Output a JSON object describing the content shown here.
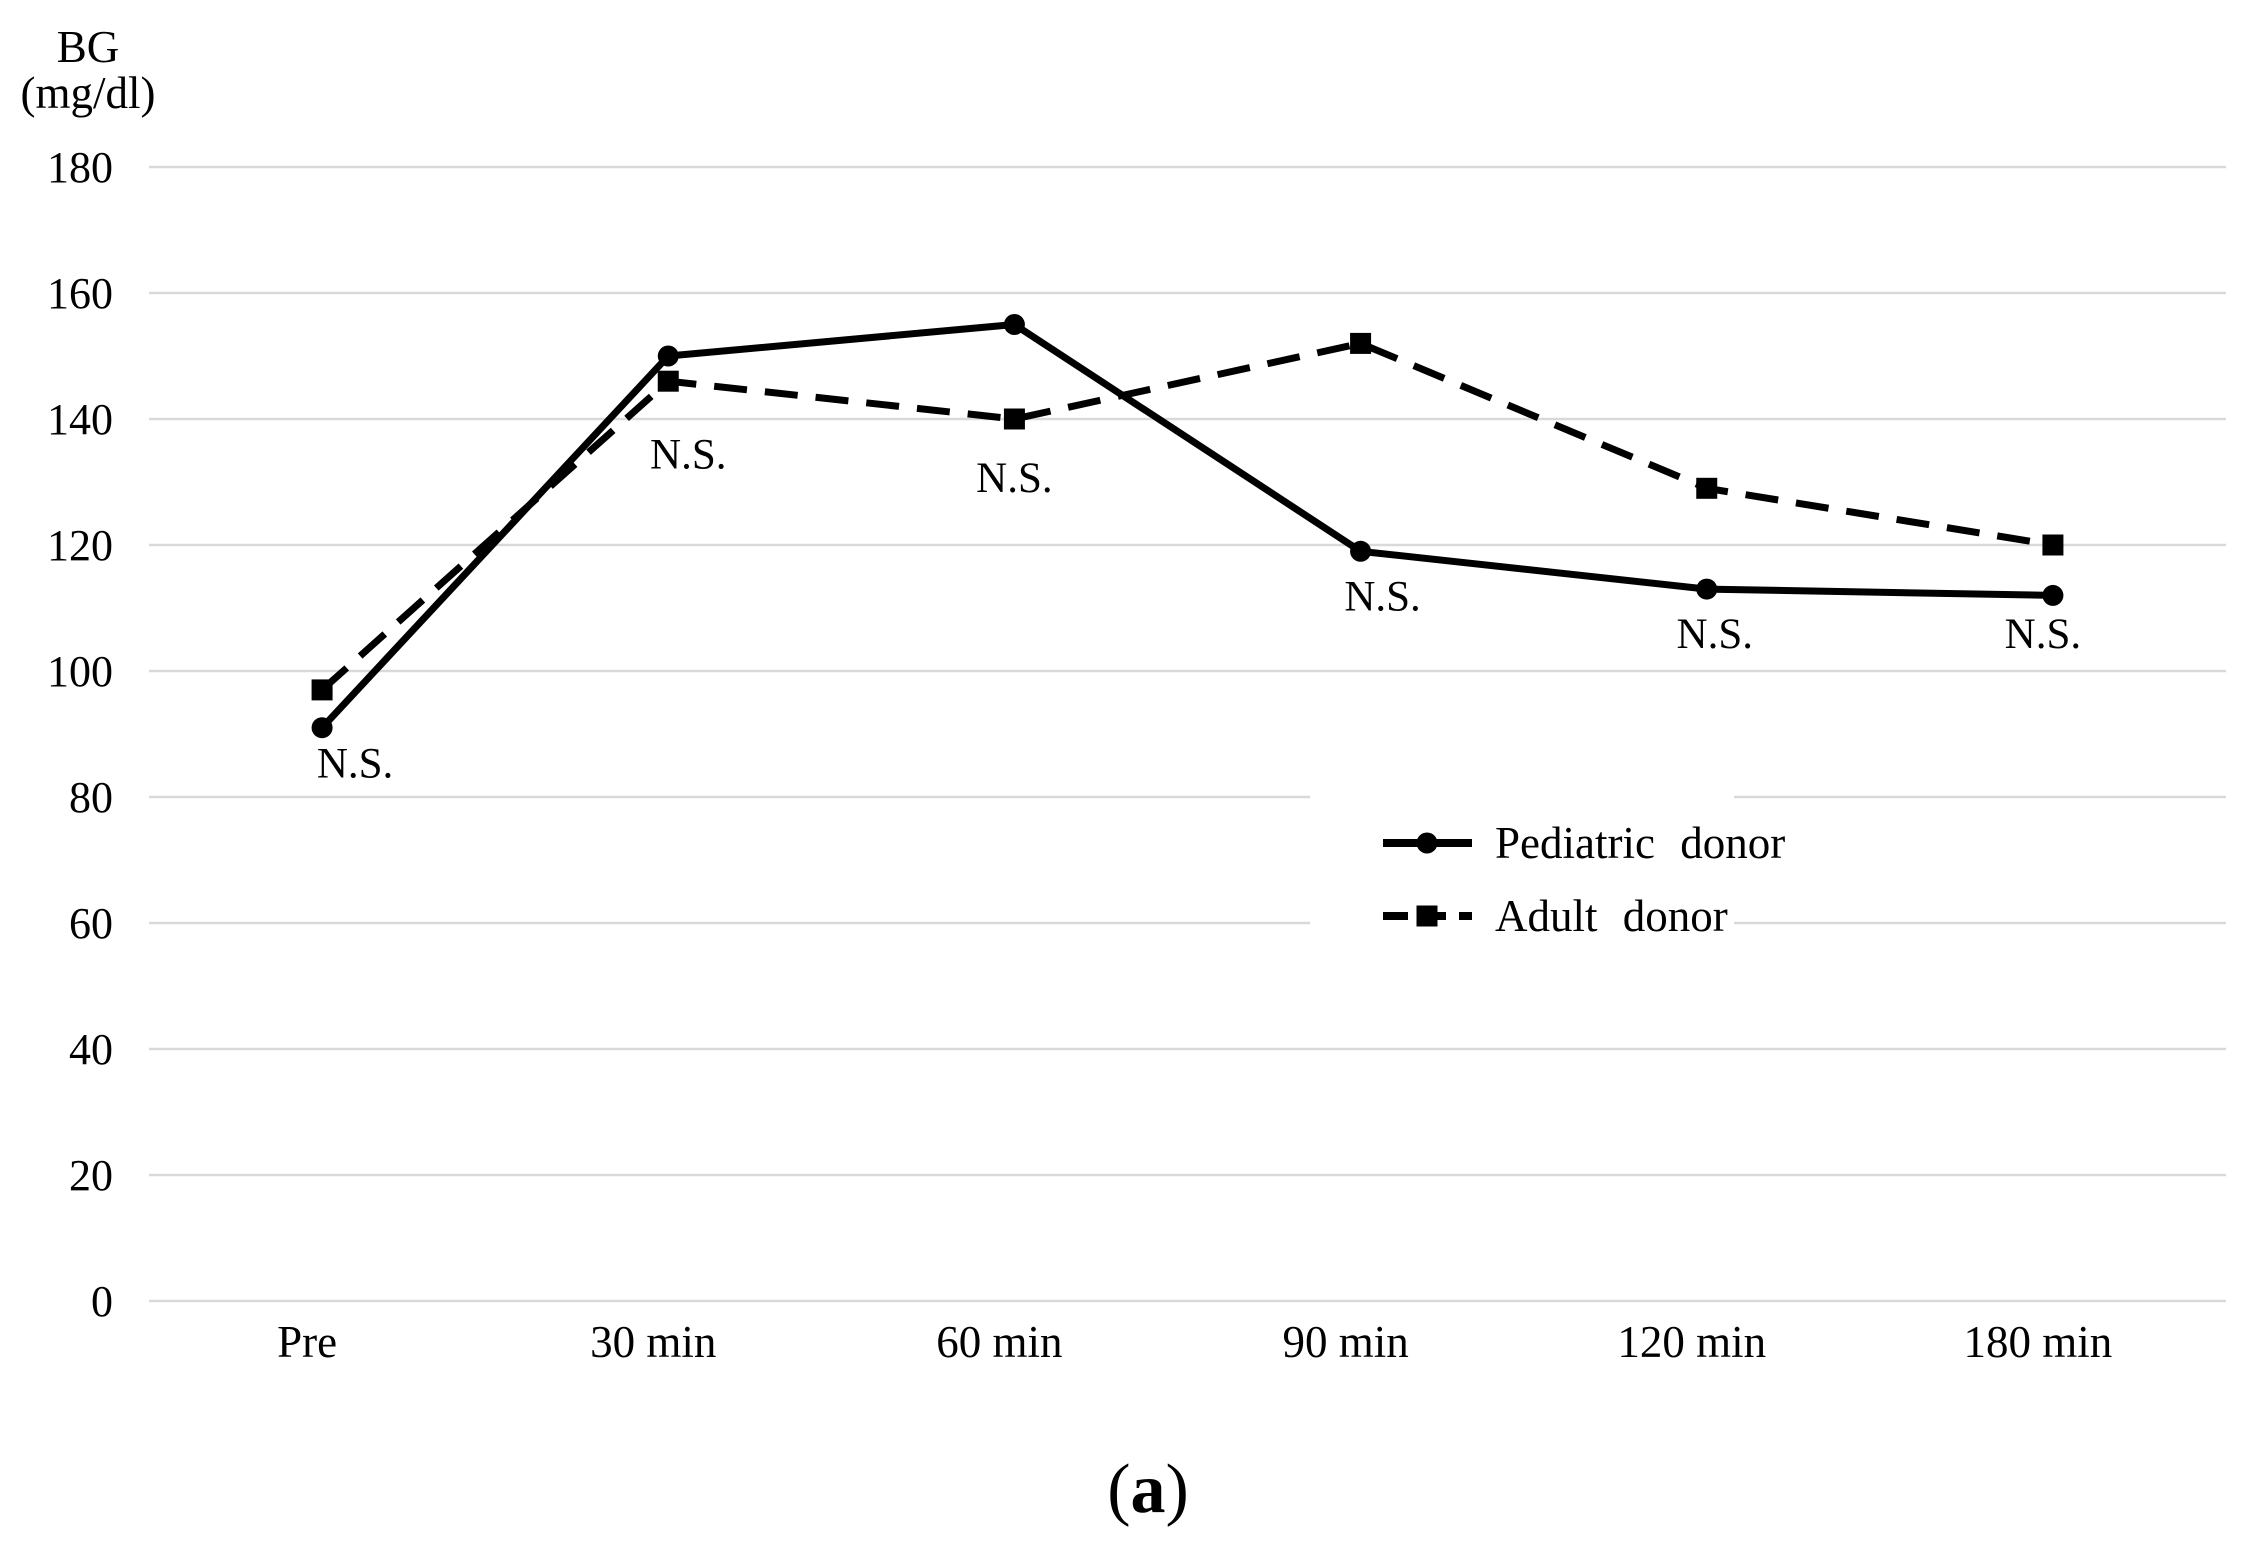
{
  "figure": {
    "caption_open": "(",
    "caption_letter": "a",
    "caption_close": ")"
  },
  "chart_data": {
    "type": "line",
    "title": "",
    "ylabel_lines": [
      "BG",
      "(mg/dl)"
    ],
    "xlabel": "",
    "ylim": [
      0,
      180
    ],
    "ytick_step": 20,
    "ytick_labels": [
      "0",
      "20",
      "40",
      "60",
      "80",
      "100",
      "120",
      "140",
      "160",
      "180"
    ],
    "grid": "horizontal-only",
    "gridline_color": "#d9d9d9",
    "text_color": "#000000",
    "legend_position": "inside-right-middle",
    "categories": [
      "Pre",
      "30 min",
      "60 min",
      "90 min",
      "120 min",
      "180 min"
    ],
    "series": [
      {
        "name": "Pediatric donor",
        "line_style": "solid",
        "marker": "circle",
        "color": "#000000",
        "values": [
          91,
          150,
          155,
          119,
          113,
          112
        ]
      },
      {
        "name": "Adult donor",
        "line_style": "dashed",
        "marker": "square",
        "color": "#000000",
        "values": [
          97,
          146,
          140,
          152,
          129,
          120
        ]
      }
    ],
    "annotations": [
      {
        "label": "N.S.",
        "category_index": 0,
        "y_value": 85.5,
        "dx": 33
      },
      {
        "label": "N.S.",
        "category_index": 1,
        "y_value": 134.5,
        "dx": 20
      },
      {
        "label": "N.S.",
        "category_index": 2,
        "y_value": 130.8,
        "dx": 0
      },
      {
        "label": "N.S.",
        "category_index": 3,
        "y_value": 112.0,
        "dx": 22
      },
      {
        "label": "N.S.",
        "category_index": 4,
        "y_value": 106.0,
        "dx": 8
      },
      {
        "label": "N.S.",
        "category_index": 5,
        "y_value": 106.0,
        "dx": -10
      }
    ]
  }
}
